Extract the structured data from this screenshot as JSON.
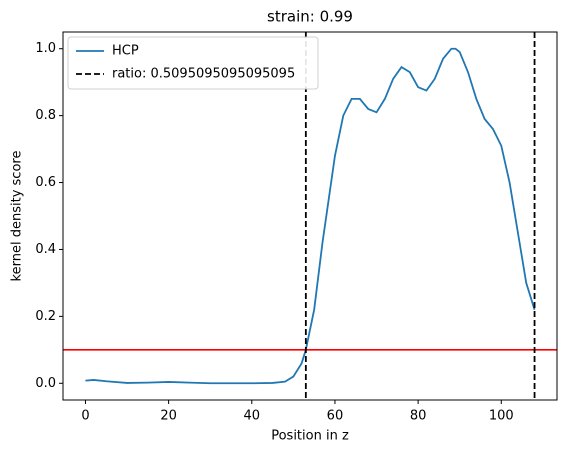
{
  "chart_data": {
    "type": "line",
    "title": "strain: 0.99",
    "x_label": "Position in z",
    "y_label": "kernel density score",
    "x": [
      0,
      2,
      5,
      10,
      15,
      20,
      25,
      30,
      35,
      40,
      45,
      48,
      50,
      52,
      53,
      55,
      57,
      60,
      62,
      64,
      66,
      68,
      70,
      72,
      74,
      76,
      78,
      80,
      82,
      84,
      86,
      88,
      89,
      90,
      92,
      94,
      96,
      98,
      100,
      102,
      104,
      106,
      108
    ],
    "series": [
      {
        "name": "HCP",
        "color": "#1f77b4",
        "values": [
          0.008,
          0.01,
          0.006,
          0.001,
          0.002,
          0.004,
          0.002,
          0.0,
          0.0,
          0.0,
          0.001,
          0.005,
          0.02,
          0.06,
          0.1,
          0.22,
          0.42,
          0.68,
          0.8,
          0.85,
          0.85,
          0.82,
          0.81,
          0.85,
          0.91,
          0.945,
          0.93,
          0.885,
          0.875,
          0.91,
          0.97,
          1.0,
          1.0,
          0.99,
          0.93,
          0.85,
          0.79,
          0.76,
          0.71,
          0.6,
          0.45,
          0.3,
          0.22
        ]
      }
    ],
    "vlines": {
      "name": "ratio: 0.5095095095095095",
      "color": "#000000",
      "values": [
        53,
        108
      ]
    },
    "hline": {
      "color": "#ff0000",
      "value": 0.1
    },
    "xlim": [
      -5.4,
      113.4
    ],
    "ylim": [
      -0.05,
      1.05
    ],
    "xticks": [
      0,
      20,
      40,
      60,
      80,
      100
    ],
    "yticks": [
      {
        "value": 0,
        "label": "0.0"
      },
      {
        "value": 0.2,
        "label": "0.2"
      },
      {
        "value": 0.4,
        "label": "0.4"
      },
      {
        "value": 0.6,
        "label": "0.6"
      },
      {
        "value": 0.8,
        "label": "0.8"
      },
      {
        "value": 1.0,
        "label": "1.0"
      }
    ],
    "legend": "upper left"
  }
}
